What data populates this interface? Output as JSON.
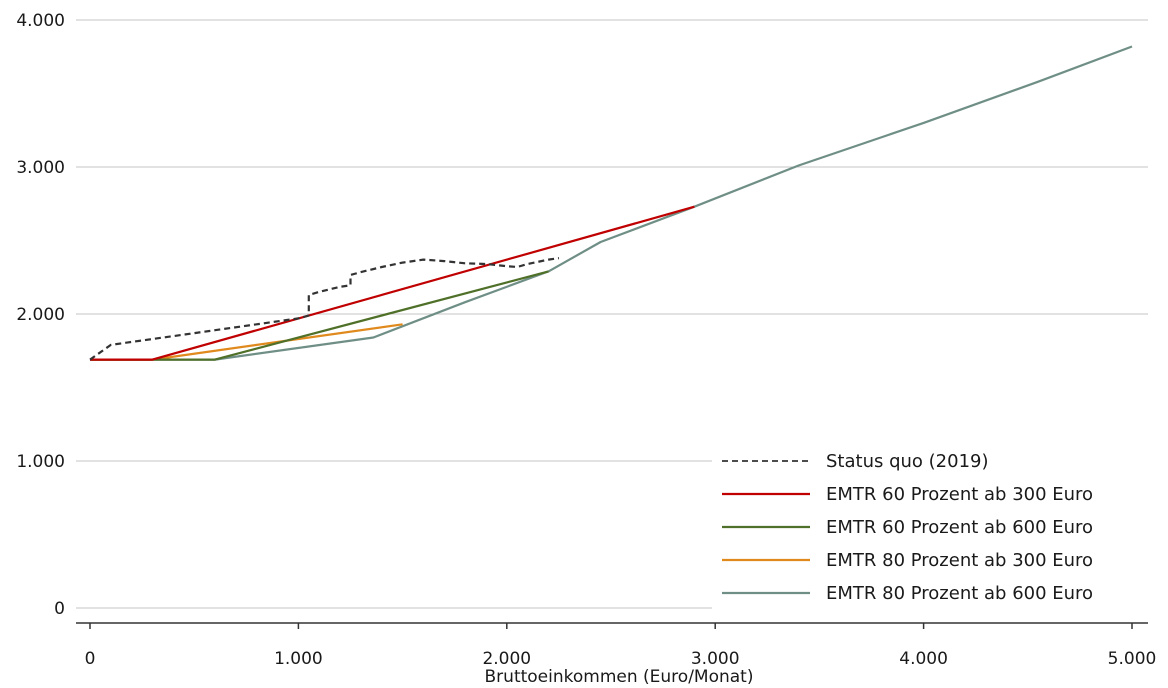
{
  "chart_data": {
    "type": "line",
    "title": "",
    "xlabel": "Bruttoeinkommen (Euro/Monat)",
    "ylabel": "",
    "xlim": [
      0,
      5000
    ],
    "ylim": [
      0,
      4000
    ],
    "x_ticks": [
      {
        "value": 0,
        "label": "0"
      },
      {
        "value": 1000,
        "label": "1.000"
      },
      {
        "value": 2000,
        "label": "2.000"
      },
      {
        "value": 3000,
        "label": "3.000"
      },
      {
        "value": 4000,
        "label": "4.000"
      },
      {
        "value": 5000,
        "label": "5.000"
      }
    ],
    "y_ticks": [
      {
        "value": 0,
        "label": "0"
      },
      {
        "value": 1000,
        "label": "1.000"
      },
      {
        "value": 2000,
        "label": "2.000"
      },
      {
        "value": 3000,
        "label": "3.000"
      },
      {
        "value": 4000,
        "label": "4.000"
      }
    ],
    "grid": "horizontal",
    "legend_position": "bottom-right",
    "series": [
      {
        "name": "Status quo (2019)",
        "color": "#333333",
        "dash": "dashed",
        "points": [
          [
            0,
            1690
          ],
          [
            100,
            1790
          ],
          [
            200,
            1810
          ],
          [
            400,
            1850
          ],
          [
            600,
            1890
          ],
          [
            800,
            1930
          ],
          [
            1000,
            1970
          ],
          [
            1050,
            1990
          ],
          [
            1050,
            2130
          ],
          [
            1100,
            2150
          ],
          [
            1200,
            2185
          ],
          [
            1250,
            2195
          ],
          [
            1250,
            2265
          ],
          [
            1300,
            2285
          ],
          [
            1400,
            2320
          ],
          [
            1500,
            2350
          ],
          [
            1600,
            2370
          ],
          [
            1700,
            2360
          ],
          [
            1800,
            2345
          ],
          [
            1900,
            2340
          ],
          [
            2000,
            2325
          ],
          [
            2050,
            2320
          ],
          [
            2100,
            2340
          ],
          [
            2150,
            2355
          ],
          [
            2200,
            2370
          ],
          [
            2250,
            2380
          ]
        ]
      },
      {
        "name": "EMTR 60 Prozent ab 300 Euro",
        "color": "#c00000",
        "dash": "solid",
        "points": [
          [
            0,
            1690
          ],
          [
            300,
            1690
          ],
          [
            2900,
            2730
          ]
        ]
      },
      {
        "name": "EMTR 60 Prozent ab 600 Euro",
        "color": "#4f7028",
        "dash": "solid",
        "points": [
          [
            0,
            1690
          ],
          [
            600,
            1690
          ],
          [
            2200,
            2290
          ]
        ]
      },
      {
        "name": "EMTR 80 Prozent ab 300 Euro",
        "color": "#e08a1e",
        "dash": "solid",
        "points": [
          [
            0,
            1690
          ],
          [
            300,
            1690
          ],
          [
            1500,
            1930
          ]
        ]
      },
      {
        "name": "EMTR 80 Prozent ab 600 Euro",
        "color": "#6f8f86",
        "dash": "solid",
        "points": [
          [
            0,
            1690
          ],
          [
            600,
            1690
          ],
          [
            1360,
            1840
          ],
          [
            1800,
            2080
          ],
          [
            2200,
            2290
          ],
          [
            2450,
            2490
          ],
          [
            2900,
            2730
          ],
          [
            3400,
            3010
          ],
          [
            4000,
            3300
          ],
          [
            4550,
            3580
          ],
          [
            5000,
            3820
          ]
        ]
      }
    ]
  }
}
